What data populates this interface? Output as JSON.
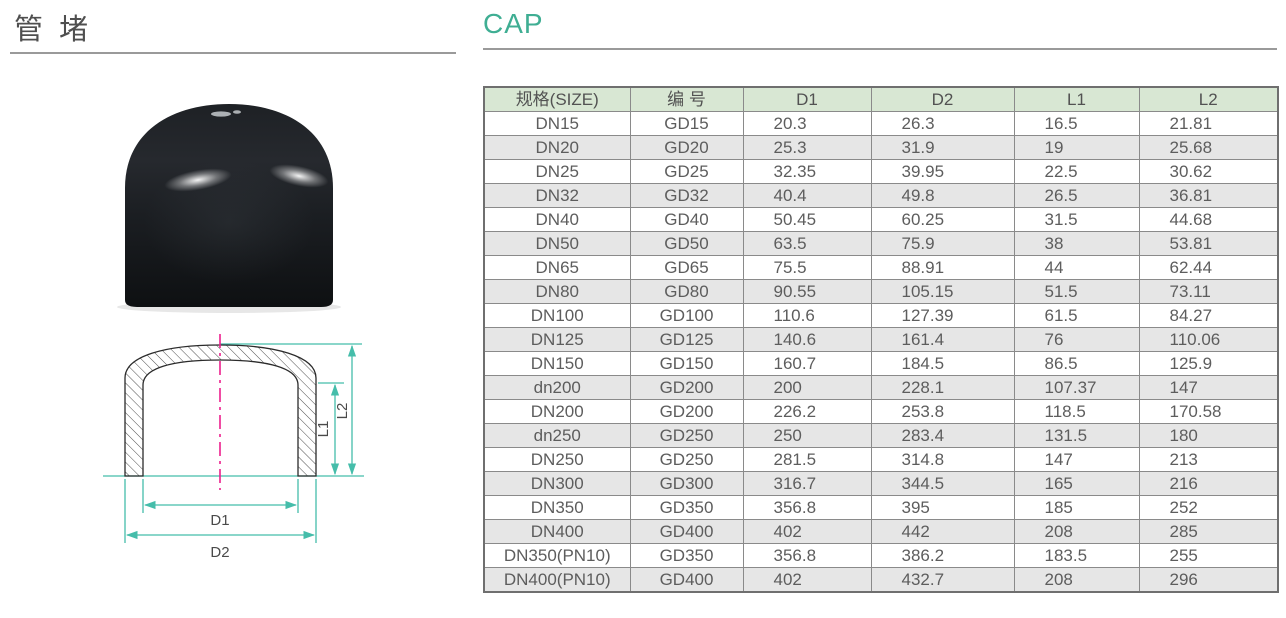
{
  "header": {
    "title_cn": "管 堵",
    "title_en": "CAP"
  },
  "colors": {
    "accent_teal": "#3fae93",
    "dimension_line": "#45bdaa",
    "centerline_magenta": "#ec1f8e",
    "table_header_bg": "#d8e7d3",
    "table_stripe_bg": "#e6e6e6",
    "table_border": "#8a8a8a",
    "text_gray": "#5a5a5a"
  },
  "drawing": {
    "labels": {
      "d1": "D1",
      "d2": "D2",
      "l1": "L1",
      "l2": "L2"
    }
  },
  "table": {
    "headers": [
      "规格(SIZE)",
      "编  号",
      "D1",
      "D2",
      "L1",
      "L2"
    ],
    "rows": [
      [
        "DN15",
        "GD15",
        "20.3",
        "26.3",
        "16.5",
        "21.81"
      ],
      [
        "DN20",
        "GD20",
        "25.3",
        "31.9",
        "19",
        "25.68"
      ],
      [
        "DN25",
        "GD25",
        "32.35",
        "39.95",
        "22.5",
        "30.62"
      ],
      [
        "DN32",
        "GD32",
        "40.4",
        "49.8",
        "26.5",
        "36.81"
      ],
      [
        "DN40",
        "GD40",
        "50.45",
        "60.25",
        "31.5",
        "44.68"
      ],
      [
        "DN50",
        "GD50",
        "63.5",
        "75.9",
        "38",
        "53.81"
      ],
      [
        "DN65",
        "GD65",
        "75.5",
        "88.91",
        "44",
        "62.44"
      ],
      [
        "DN80",
        "GD80",
        "90.55",
        "105.15",
        "51.5",
        "73.11"
      ],
      [
        "DN100",
        "GD100",
        "110.6",
        "127.39",
        "61.5",
        "84.27"
      ],
      [
        "DN125",
        "GD125",
        "140.6",
        "161.4",
        "76",
        "110.06"
      ],
      [
        "DN150",
        "GD150",
        "160.7",
        "184.5",
        "86.5",
        "125.9"
      ],
      [
        "dn200",
        "GD200",
        "200",
        "228.1",
        "107.37",
        "147"
      ],
      [
        "DN200",
        "GD200",
        "226.2",
        "253.8",
        "118.5",
        "170.58"
      ],
      [
        "dn250",
        "GD250",
        "250",
        "283.4",
        "131.5",
        "180"
      ],
      [
        "DN250",
        "GD250",
        "281.5",
        "314.8",
        "147",
        "213"
      ],
      [
        "DN300",
        "GD300",
        "316.7",
        "344.5",
        "165",
        "216"
      ],
      [
        "DN350",
        "GD350",
        "356.8",
        "395",
        "185",
        "252"
      ],
      [
        "DN400",
        "GD400",
        "402",
        "442",
        "208",
        "285"
      ],
      [
        "DN350(PN10)",
        "GD350",
        "356.8",
        "386.2",
        "183.5",
        "255"
      ],
      [
        "DN400(PN10)",
        "GD400",
        "402",
        "432.7",
        "208",
        "296"
      ]
    ]
  }
}
